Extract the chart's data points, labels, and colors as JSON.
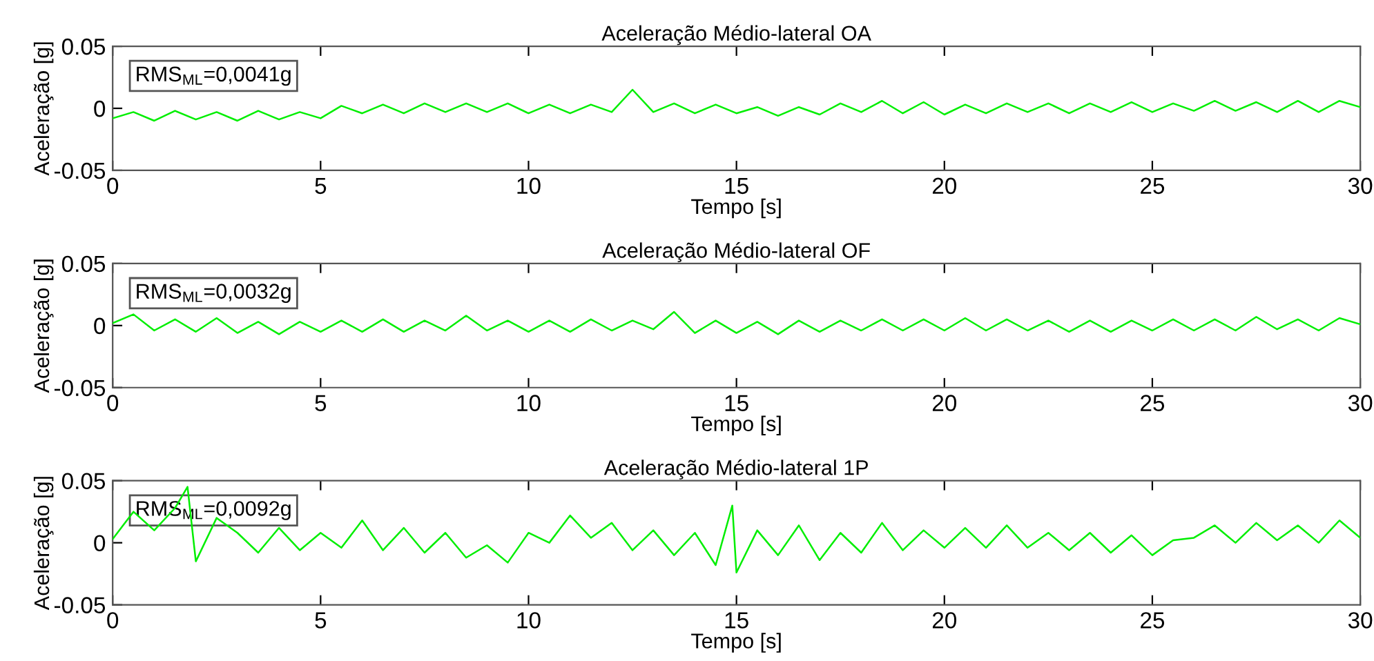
{
  "chart_data": [
    {
      "type": "line",
      "title": "Aceleração Médio-lateral OA",
      "xlabel": "Tempo [s]",
      "ylabel": "Aceleração [g]",
      "xlim": [
        0,
        30
      ],
      "ylim": [
        -0.05,
        0.05
      ],
      "xticks": [
        0,
        5,
        10,
        15,
        20,
        25,
        30
      ],
      "yticks": [
        -0.05,
        0,
        0.05
      ],
      "grid": false,
      "annotations": [
        "RMS$_{ML}$=0,0041g"
      ],
      "x": [
        0,
        0.5,
        1,
        1.5,
        2,
        2.5,
        3,
        3.5,
        4,
        4.5,
        5,
        5.5,
        6,
        6.5,
        7,
        7.5,
        8,
        8.5,
        9,
        9.5,
        10,
        10.5,
        11,
        11.5,
        12,
        12.5,
        13,
        13.5,
        14,
        14.5,
        15,
        15.5,
        16,
        16.5,
        17,
        17.5,
        18,
        18.5,
        19,
        19.5,
        20,
        20.5,
        21,
        21.5,
        22,
        22.5,
        23,
        23.5,
        24,
        24.5,
        25,
        25.5,
        26,
        26.5,
        27,
        27.5,
        28,
        28.5,
        29,
        29.5,
        30
      ],
      "series": [
        {
          "color": "#00ee00",
          "values": [
            -0.008,
            -0.003,
            -0.01,
            -0.002,
            -0.009,
            -0.003,
            -0.01,
            -0.002,
            -0.009,
            -0.003,
            -0.008,
            0.002,
            -0.004,
            0.003,
            -0.004,
            0.004,
            -0.003,
            0.004,
            -0.003,
            0.004,
            -0.004,
            0.003,
            -0.004,
            0.003,
            -0.003,
            0.015,
            -0.003,
            0.004,
            -0.004,
            0.003,
            -0.004,
            0.001,
            -0.006,
            0.001,
            -0.005,
            0.004,
            -0.003,
            0.006,
            -0.004,
            0.005,
            -0.005,
            0.003,
            -0.004,
            0.004,
            -0.003,
            0.004,
            -0.004,
            0.004,
            -0.003,
            0.005,
            -0.003,
            0.004,
            -0.002,
            0.006,
            -0.002,
            0.005,
            -0.003,
            0.006,
            -0.003,
            0.006,
            0.001
          ]
        }
      ]
    },
    {
      "type": "line",
      "title": "Aceleração Médio-lateral OF",
      "xlabel": "Tempo [s]",
      "ylabel": "Aceleração [g]",
      "xlim": [
        0,
        30
      ],
      "ylim": [
        -0.05,
        0.05
      ],
      "xticks": [
        0,
        5,
        10,
        15,
        20,
        25,
        30
      ],
      "yticks": [
        -0.05,
        0,
        0.05
      ],
      "grid": false,
      "annotations": [
        "RMS$_{ML}$=0,0032g"
      ],
      "x": [
        0,
        0.5,
        1,
        1.5,
        2,
        2.5,
        3,
        3.5,
        4,
        4.5,
        5,
        5.5,
        6,
        6.5,
        7,
        7.5,
        8,
        8.5,
        9,
        9.5,
        10,
        10.5,
        11,
        11.5,
        12,
        12.5,
        13,
        13.5,
        14,
        14.5,
        15,
        15.5,
        16,
        16.5,
        17,
        17.5,
        18,
        18.5,
        19,
        19.5,
        20,
        20.5,
        21,
        21.5,
        22,
        22.5,
        23,
        23.5,
        24,
        24.5,
        25,
        25.5,
        26,
        26.5,
        27,
        27.5,
        28,
        28.5,
        29,
        29.5,
        30
      ],
      "series": [
        {
          "color": "#00ee00",
          "values": [
            0.002,
            0.009,
            -0.004,
            0.005,
            -0.005,
            0.006,
            -0.006,
            0.003,
            -0.007,
            0.003,
            -0.005,
            0.004,
            -0.005,
            0.005,
            -0.005,
            0.004,
            -0.004,
            0.008,
            -0.004,
            0.004,
            -0.005,
            0.004,
            -0.005,
            0.005,
            -0.004,
            0.004,
            -0.003,
            0.011,
            -0.006,
            0.004,
            -0.006,
            0.003,
            -0.007,
            0.004,
            -0.005,
            0.004,
            -0.004,
            0.005,
            -0.004,
            0.005,
            -0.004,
            0.006,
            -0.004,
            0.005,
            -0.004,
            0.004,
            -0.005,
            0.004,
            -0.005,
            0.004,
            -0.004,
            0.005,
            -0.004,
            0.005,
            -0.004,
            0.007,
            -0.003,
            0.005,
            -0.004,
            0.006,
            0.001
          ]
        }
      ]
    },
    {
      "type": "line",
      "title": "Aceleração Médio-lateral 1P",
      "xlabel": "Tempo [s]",
      "ylabel": "Aceleração [g]",
      "xlim": [
        0,
        30
      ],
      "ylim": [
        -0.05,
        0.05
      ],
      "xticks": [
        0,
        5,
        10,
        15,
        20,
        25,
        30
      ],
      "yticks": [
        -0.05,
        0,
        0.05
      ],
      "grid": false,
      "annotations": [
        "RMS$_{ML}$=0,0092g"
      ],
      "x": [
        0,
        0.5,
        1,
        1.5,
        1.8,
        2,
        2.5,
        3,
        3.5,
        4,
        4.5,
        5,
        5.5,
        6,
        6.5,
        7,
        7.5,
        8,
        8.5,
        9,
        9.5,
        10,
        10.5,
        11,
        11.5,
        12,
        12.5,
        13,
        13.5,
        14,
        14.5,
        14.9,
        15,
        15.5,
        16,
        16.5,
        17,
        17.5,
        18,
        18.5,
        19,
        19.5,
        20,
        20.5,
        21,
        21.5,
        22,
        22.5,
        23,
        23.5,
        24,
        24.5,
        25,
        25.5,
        26,
        26.5,
        27,
        27.5,
        28,
        28.5,
        29,
        29.5,
        30
      ],
      "series": [
        {
          "color": "#00ee00",
          "values": [
            0.003,
            0.025,
            0.01,
            0.028,
            0.045,
            -0.015,
            0.02,
            0.008,
            -0.008,
            0.012,
            -0.006,
            0.008,
            -0.004,
            0.018,
            -0.006,
            0.012,
            -0.008,
            0.008,
            -0.012,
            -0.002,
            -0.016,
            0.008,
            0.0,
            0.022,
            0.004,
            0.016,
            -0.006,
            0.01,
            -0.01,
            0.008,
            -0.018,
            0.03,
            -0.024,
            0.01,
            -0.01,
            0.014,
            -0.014,
            0.008,
            -0.008,
            0.016,
            -0.006,
            0.01,
            -0.004,
            0.012,
            -0.004,
            0.014,
            -0.004,
            0.008,
            -0.006,
            0.008,
            -0.008,
            0.006,
            -0.01,
            0.002,
            0.004,
            0.014,
            0.0,
            0.016,
            0.002,
            0.014,
            0.0,
            0.018,
            0.004
          ]
        }
      ]
    }
  ]
}
